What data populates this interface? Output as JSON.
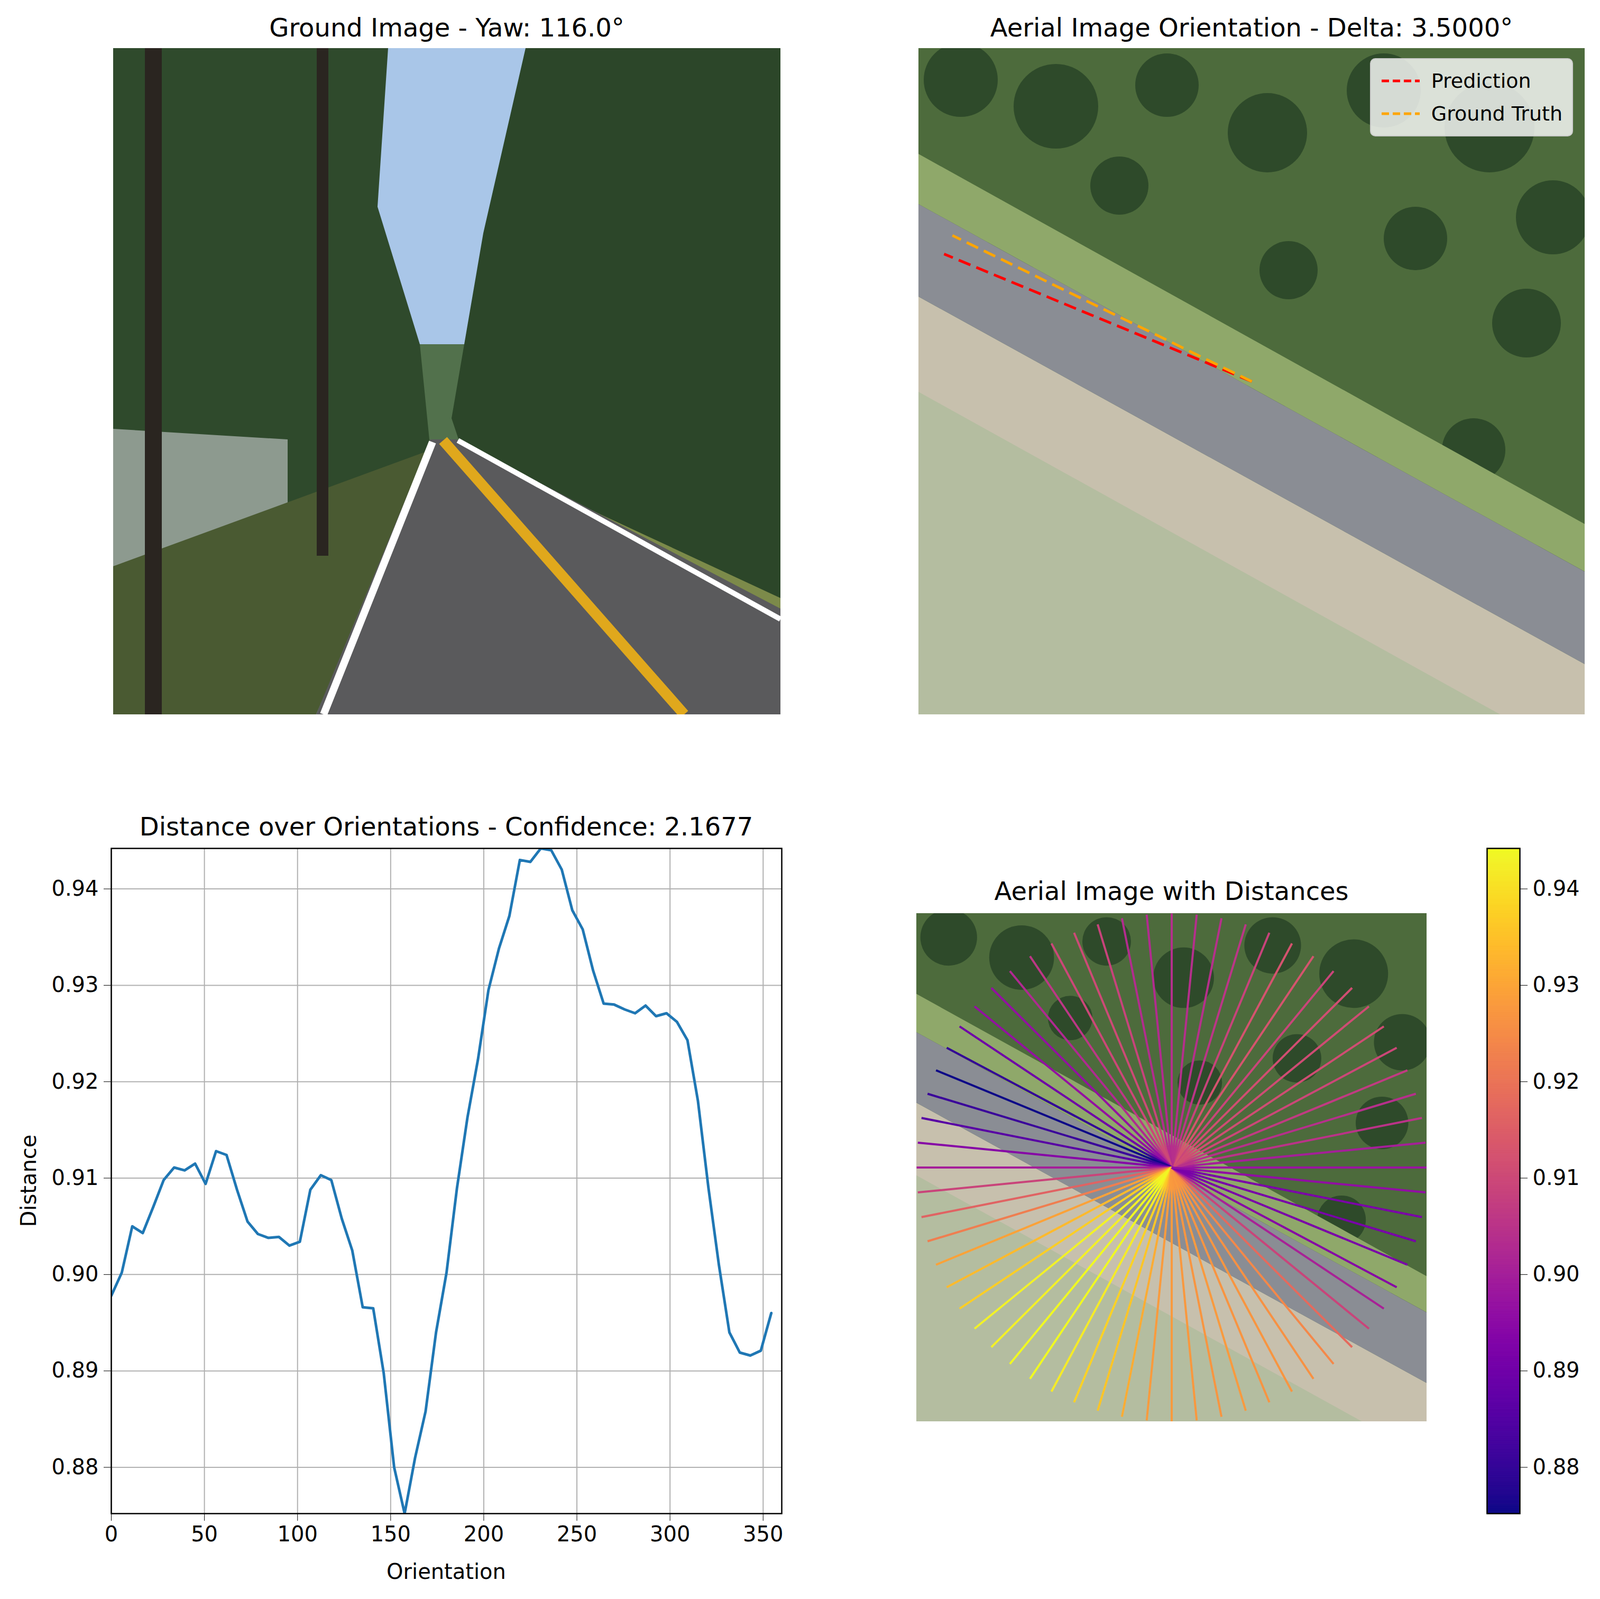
{
  "chart_data": [
    {
      "type": "image",
      "title": "Ground Image - Yaw: 116.0°"
    },
    {
      "type": "line",
      "title": "Aerial Image Orientation - Delta: 3.5000°",
      "xlim": [
        -1,
        1
      ],
      "ylim": [
        -1,
        1
      ],
      "tick_labels": false,
      "legend": "upper right",
      "series": [
        {
          "name": "Prediction",
          "color": "#ff0000",
          "line_style": "dashed",
          "angle": 157.5
        },
        {
          "name": "Ground Truth",
          "color": "#ffa500",
          "line_style": "dashed",
          "angle": 154.0
        }
      ]
    },
    {
      "type": "line",
      "title": "Distance over Orientations - Confidence: 2.1677",
      "x_label": "Orientation",
      "y_label": "Distance",
      "color": "#1f77b4",
      "x": [
        0,
        5.625,
        11.25,
        16.875,
        22.5,
        28.125,
        33.75,
        39.375,
        45,
        50.625,
        56.25,
        61.875,
        67.5,
        73.125,
        78.75,
        84.375,
        90,
        95.625,
        101.25,
        106.875,
        112.5,
        118.125,
        123.75,
        129.375,
        135,
        140.625,
        146.25,
        151.875,
        157.5,
        163.125,
        168.75,
        174.375,
        180,
        185.625,
        191.25,
        196.875,
        202.5,
        208.125,
        213.75,
        219.375,
        225,
        230.625,
        236.25,
        241.875,
        247.5,
        253.125,
        258.75,
        264.375,
        270,
        275.625,
        281.25,
        286.875,
        292.5,
        298.125,
        303.75,
        309.375,
        315,
        320.625,
        326.25,
        331.875,
        337.5,
        343.125,
        348.75,
        354.375
      ],
      "values": [
        0.8978,
        0.9002,
        0.905,
        0.9043,
        0.907,
        0.9098,
        0.9111,
        0.9108,
        0.9115,
        0.9094,
        0.9128,
        0.9124,
        0.9088,
        0.9055,
        0.9042,
        0.9038,
        0.9039,
        0.903,
        0.9034,
        0.9088,
        0.9103,
        0.9098,
        0.9058,
        0.9025,
        0.8966,
        0.8965,
        0.8898,
        0.88,
        0.8752,
        0.881,
        0.8858,
        0.894,
        0.9002,
        0.909,
        0.9163,
        0.9223,
        0.9295,
        0.9338,
        0.9372,
        0.943,
        0.9428,
        0.9442,
        0.944,
        0.942,
        0.9378,
        0.9358,
        0.9315,
        0.9281,
        0.928,
        0.9275,
        0.9271,
        0.9279,
        0.9268,
        0.9271,
        0.9262,
        0.9243,
        0.918,
        0.909,
        0.901,
        0.894,
        0.8919,
        0.8916,
        0.8921,
        0.896
      ],
      "xlim": [
        0,
        360
      ],
      "ylim": [
        0.8752,
        0.9442
      ],
      "xticks": [
        0,
        50,
        100,
        150,
        200,
        250,
        300,
        350
      ],
      "yticks": [
        0.88,
        0.89,
        {
          "value": 0.9,
          "label": "0.90"
        },
        0.91,
        0.92,
        0.93,
        0.94
      ],
      "grid": true
    },
    {
      "type": "radial",
      "title": "Aerial Image with Distances",
      "xlim": [
        -1,
        1
      ],
      "ylim": [
        -1,
        1
      ],
      "tick_labels": false,
      "angles": [
        0,
        5.625,
        11.25,
        16.875,
        22.5,
        28.125,
        33.75,
        39.375,
        45,
        50.625,
        56.25,
        61.875,
        67.5,
        73.125,
        78.75,
        84.375,
        90,
        95.625,
        101.25,
        106.875,
        112.5,
        118.125,
        123.75,
        129.375,
        135,
        140.625,
        146.25,
        151.875,
        157.5,
        163.125,
        168.75,
        174.375,
        180,
        185.625,
        191.25,
        196.875,
        202.5,
        208.125,
        213.75,
        219.375,
        225,
        230.625,
        236.25,
        241.875,
        247.5,
        253.125,
        258.75,
        264.375,
        270,
        275.625,
        281.25,
        286.875,
        292.5,
        298.125,
        303.75,
        309.375,
        315,
        320.625,
        326.25,
        331.875,
        337.5,
        343.125,
        348.75,
        354.375
      ],
      "values": [
        0.8978,
        0.9002,
        0.905,
        0.9043,
        0.907,
        0.9098,
        0.9111,
        0.9108,
        0.9115,
        0.9094,
        0.9128,
        0.9124,
        0.9088,
        0.9055,
        0.9042,
        0.9038,
        0.9039,
        0.903,
        0.9034,
        0.9088,
        0.9103,
        0.9098,
        0.9058,
        0.9025,
        0.8966,
        0.8965,
        0.8898,
        0.88,
        0.8752,
        0.881,
        0.8858,
        0.894,
        0.9002,
        0.909,
        0.9163,
        0.9223,
        0.9295,
        0.9338,
        0.9372,
        0.943,
        0.9428,
        0.9442,
        0.944,
        0.942,
        0.9378,
        0.9358,
        0.9315,
        0.9281,
        0.928,
        0.9275,
        0.9271,
        0.9279,
        0.9268,
        0.9271,
        0.9262,
        0.9243,
        0.918,
        0.909,
        0.901,
        0.894,
        0.8919,
        0.8916,
        0.8921,
        0.896
      ],
      "color_range": [
        0.8752,
        0.9442
      ],
      "color_ticks": [
        0.88,
        0.89,
        {
          "value": 0.9,
          "label": "0.90"
        },
        0.91,
        0.92,
        0.93,
        0.94
      ]
    }
  ]
}
